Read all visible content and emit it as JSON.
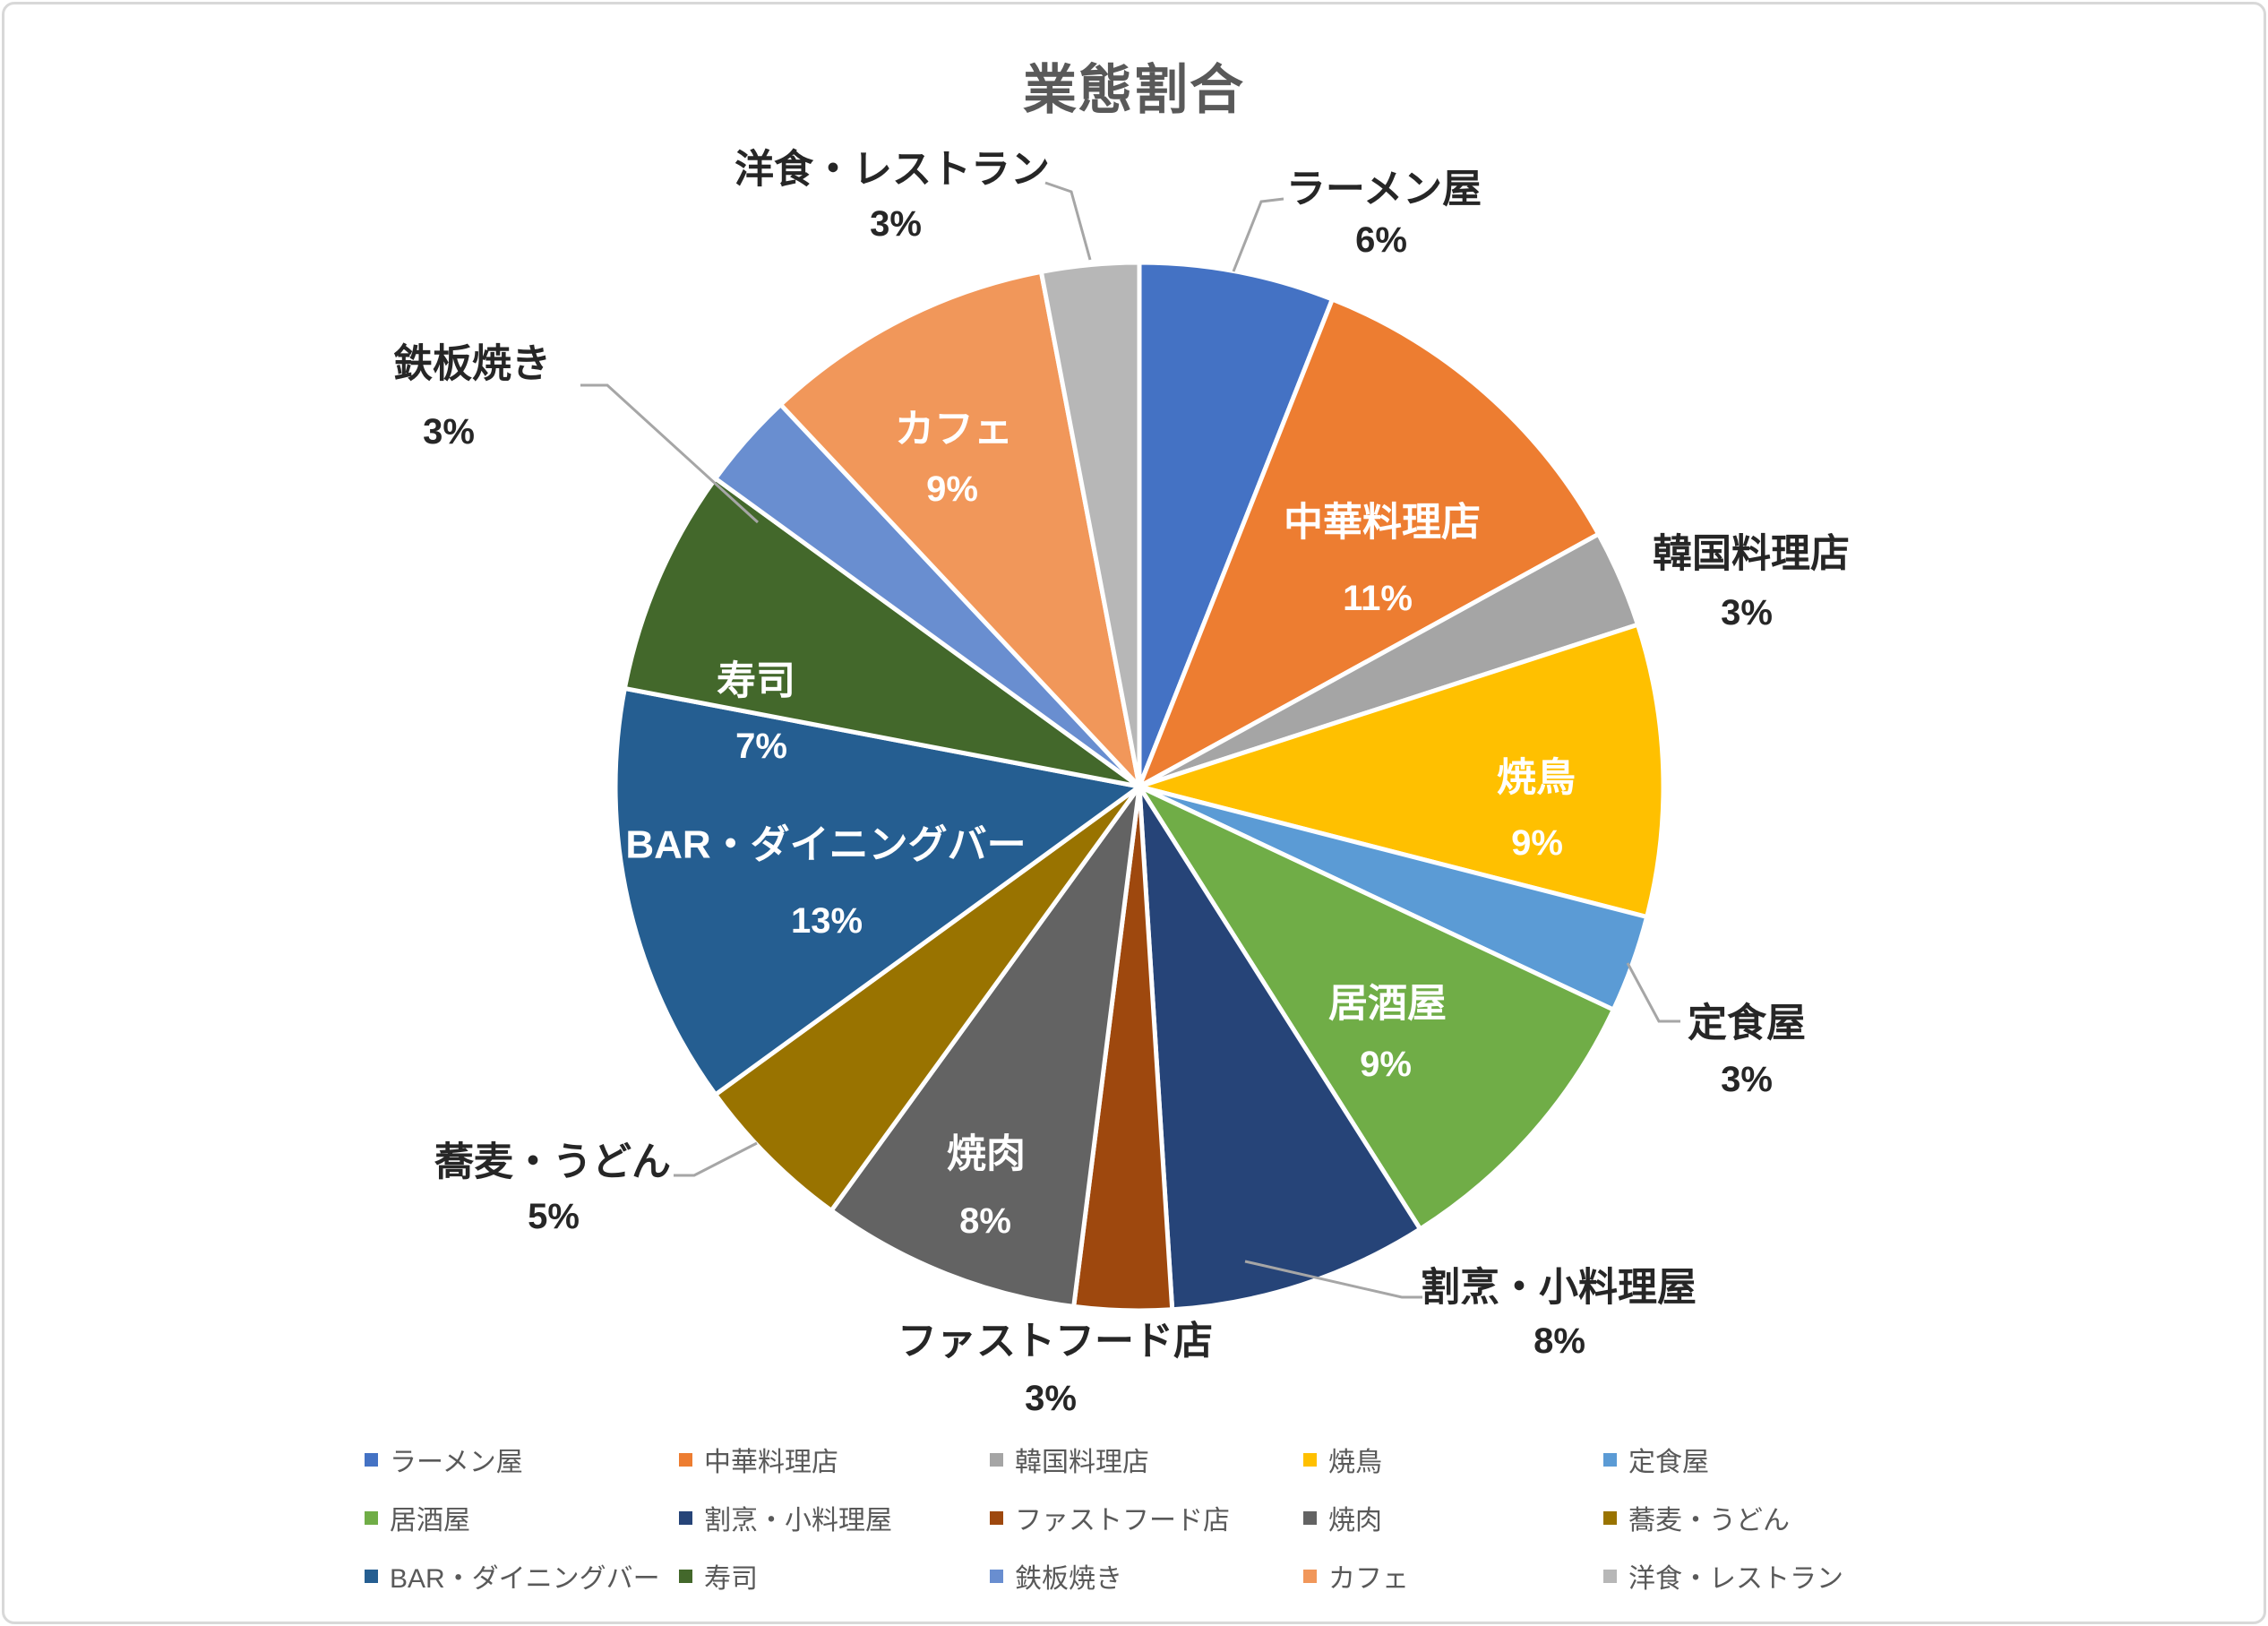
{
  "title": "業態割合",
  "chart_data": {
    "type": "pie",
    "title": "業態割合",
    "unit": "%",
    "start_angle_deg": 0,
    "direction": "clockwise",
    "grid": false,
    "legend_position": "bottom",
    "labels_format": "name above percent",
    "series": [
      {
        "name": "ラーメン屋",
        "value": 6,
        "color": "#4472C4"
      },
      {
        "name": "中華料理店",
        "value": 11,
        "color": "#ED7D31"
      },
      {
        "name": "韓国料理店",
        "value": 3,
        "color": "#A5A5A5"
      },
      {
        "name": "焼鳥",
        "value": 9,
        "color": "#FFC000"
      },
      {
        "name": "定食屋",
        "value": 3,
        "color": "#5B9BD5"
      },
      {
        "name": "居酒屋",
        "value": 9,
        "color": "#70AD47"
      },
      {
        "name": "割烹・小料理屋",
        "value": 8,
        "color": "#264478"
      },
      {
        "name": "ファストフード店",
        "value": 3,
        "color": "#9E480E"
      },
      {
        "name": "焼肉",
        "value": 8,
        "color": "#636363"
      },
      {
        "name": "蕎麦・うどん",
        "value": 5,
        "color": "#997300"
      },
      {
        "name": "BAR・ダイニングバー",
        "value": 13,
        "color": "#255E91"
      },
      {
        "name": "寿司",
        "value": 7,
        "color": "#43682B"
      },
      {
        "name": "鉄板焼き",
        "value": 3,
        "color": "#698ED0"
      },
      {
        "name": "カフェ",
        "value": 9,
        "color": "#F1975A"
      },
      {
        "name": "洋食・レストラン",
        "value": 3,
        "color": "#B7B7B7"
      }
    ]
  },
  "colors": {
    "background": "#FFFFFF",
    "card_border": "#D8D8D8",
    "title_text": "#595959",
    "label_inside": "#FFFFFF",
    "label_outside": "#262626",
    "leader_line": "#A6A6A6",
    "legend_text": "#595959",
    "slice_border": "#FFFFFF"
  }
}
